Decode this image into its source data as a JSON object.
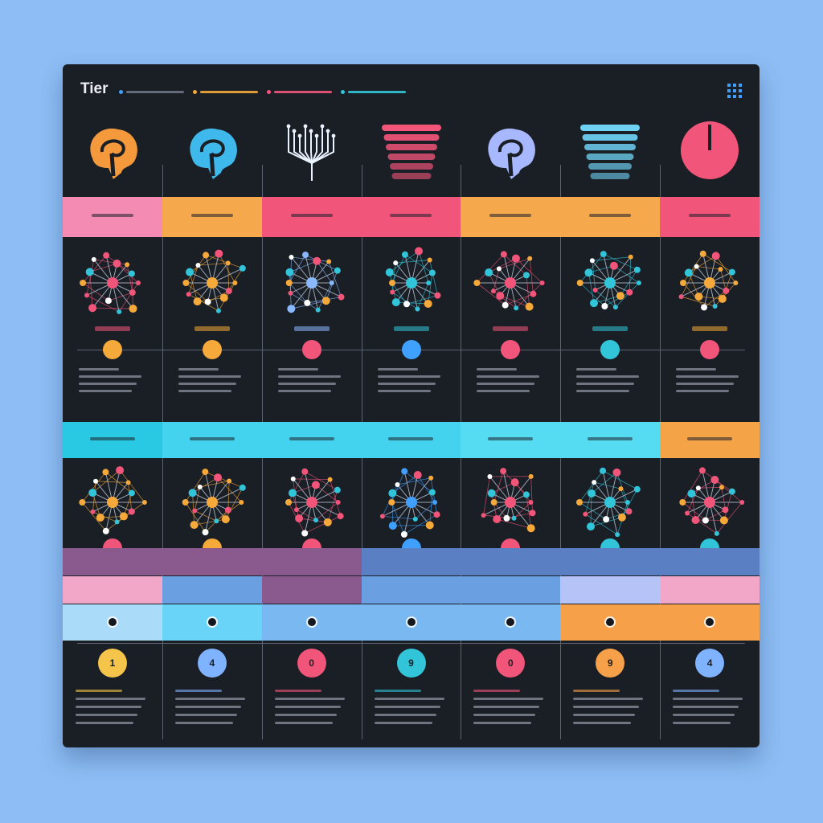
{
  "header": {
    "title": "Tier",
    "legend": [
      {
        "color": "#3fa0ff"
      },
      {
        "color": "#f4a93a"
      },
      {
        "color": "#f2557a"
      },
      {
        "color": "#32c4d8"
      }
    ]
  },
  "columns": [
    {
      "model_icon": "brain-icon",
      "icon_color": "#f59a3c",
      "graph": "grid-network",
      "graph_color": "#f2557a",
      "badge_color": "#f4a93a"
    },
    {
      "model_icon": "brain-icon",
      "icon_color": "#3fb8ec",
      "graph": "radial-network",
      "graph_color": "#f4a93a",
      "badge_color": "#f4a93a"
    },
    {
      "model_icon": "circuit-icon",
      "icon_color": "#eaf2ff",
      "graph": "dense-network",
      "graph_color": "#8ab8ff",
      "badge_color": "#f2557a"
    },
    {
      "model_icon": "layer-stack-icon",
      "icon_color": "#f2557a",
      "graph": "cluster-network",
      "graph_color": "#32c4d8",
      "badge_color": "#3fa0ff"
    },
    {
      "model_icon": "brain-icon",
      "icon_color": "#a8b8ff",
      "graph": "tree-network",
      "graph_color": "#f2557a",
      "badge_color": "#f2557a"
    },
    {
      "model_icon": "layer-stack-icon",
      "icon_color": "#6fd2f5",
      "graph": "hex-network",
      "graph_color": "#32c4d8",
      "badge_color": "#32c4d8"
    },
    {
      "model_icon": "gauge-icon",
      "icon_color": "#f2557a",
      "graph": "matrix-network",
      "graph_color": "#f4a93a",
      "badge_color": "#f2557a"
    }
  ],
  "rows": {
    "band1_colors": [
      "#f48bb2",
      "#f6a84c",
      "#f2557a",
      "#f2557a",
      "#f6a84c",
      "#f6a84c",
      "#f2557a"
    ],
    "band2_colors": [
      "#29c9e3",
      "#43d3ee",
      "#43d3ee",
      "#43d3ee",
      "#56dcf2",
      "#56dcf2",
      "#f4a347"
    ],
    "tier_rows": [
      [
        "#8a5a8e",
        "#8a5a8e",
        "#8a5a8e",
        "#5a7fc2",
        "#5a7fc2",
        "#5a7fc2",
        "#5a7fc2"
      ],
      [
        "#f2a6c8",
        "#6aa0e2",
        "#8a5a8e",
        "#6aa0e2",
        "#6aa0e2",
        "#b6c3f6",
        "#f2a6c8"
      ],
      [
        "#aadcf9",
        "#6ad4f8",
        "#7ab8f2",
        "#7ab8f2",
        "#7ab8f2",
        "#f6a14a",
        "#f6a14a"
      ]
    ]
  },
  "stage2_colors": [
    "#f2557a",
    "#f4a93a",
    "#f2557a",
    "#3fa0ff",
    "#f2557a",
    "#32c4d8",
    "#32c4d8"
  ],
  "steps": [
    {
      "value": "1",
      "color": "#f5c44a"
    },
    {
      "value": "4",
      "color": "#7fb3ff"
    },
    {
      "value": "0",
      "color": "#f2557a"
    },
    {
      "value": "9",
      "color": "#32c4d8"
    },
    {
      "value": "0",
      "color": "#f2557a"
    },
    {
      "value": "9",
      "color": "#f6a14a"
    },
    {
      "value": "4",
      "color": "#7fb3ff"
    }
  ]
}
